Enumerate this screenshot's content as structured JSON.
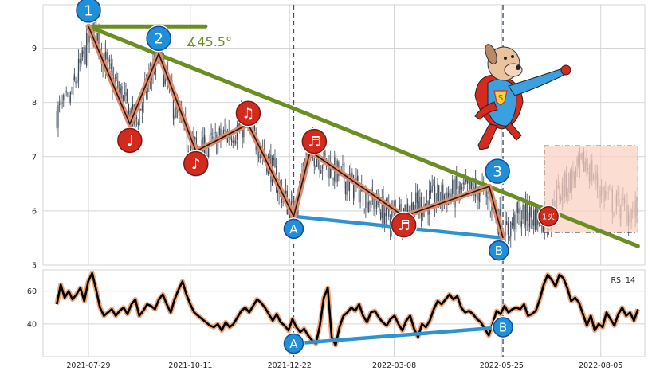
{
  "colors": {
    "candle": "#3a4657",
    "grid": "#d4d4d4",
    "trendline": "#6b8e23",
    "wave": "#e08a6c",
    "support": "#2f92d1",
    "badge_blue": "#1f8fd8",
    "badge_red": "#d42a1d",
    "dashed": "#3f5266",
    "box_fill": "#fbd2c2",
    "box_border": "#4b4b4b",
    "rsi_line": "#000000",
    "rsi_glow": "#f0a97d"
  },
  "icons": {
    "music_notes": [
      "music-note-icon",
      "eighth-note-icon",
      "beamed-notes-icon"
    ],
    "hero": "superhero-dog-icon"
  },
  "chart_data": [
    {
      "type": "candlestick",
      "title": "",
      "xlabel": "",
      "ylabel": "",
      "ylim": [
        5.0,
        9.8
      ],
      "yticks": [
        5,
        6,
        7,
        8,
        9
      ],
      "xlim": [
        "2021-06-26",
        "2022-09-06"
      ],
      "xtick_labels": [
        "2021-07-29",
        "2021-10-11",
        "2021-12-22",
        "2022-03-08",
        "2022-05-25",
        "2022-08-05"
      ],
      "grid": true,
      "price_path": [
        {
          "x": "2021-07-06",
          "y": 7.8
        },
        {
          "x": "2021-07-15",
          "y": 8.0
        },
        {
          "x": "2021-07-22",
          "y": 8.6
        },
        {
          "x": "2021-08-02",
          "y": 9.4
        },
        {
          "x": "2021-08-12",
          "y": 8.6
        },
        {
          "x": "2021-08-24",
          "y": 8.0
        },
        {
          "x": "2021-09-01",
          "y": 7.6
        },
        {
          "x": "2021-09-12",
          "y": 8.5
        },
        {
          "x": "2021-09-18",
          "y": 8.9
        },
        {
          "x": "2021-09-28",
          "y": 8.0
        },
        {
          "x": "2021-10-08",
          "y": 7.3
        },
        {
          "x": "2021-10-20",
          "y": 7.1
        },
        {
          "x": "2021-11-05",
          "y": 7.4
        },
        {
          "x": "2021-11-20",
          "y": 7.6
        },
        {
          "x": "2021-12-05",
          "y": 7.0
        },
        {
          "x": "2021-12-15",
          "y": 6.4
        },
        {
          "x": "2021-12-25",
          "y": 5.9
        },
        {
          "x": "2022-01-02",
          "y": 6.9
        },
        {
          "x": "2022-01-08",
          "y": 7.1
        },
        {
          "x": "2022-01-25",
          "y": 6.7
        },
        {
          "x": "2022-02-15",
          "y": 6.3
        },
        {
          "x": "2022-03-05",
          "y": 5.9
        },
        {
          "x": "2022-03-25",
          "y": 6.1
        },
        {
          "x": "2022-04-15",
          "y": 6.3
        },
        {
          "x": "2022-05-10",
          "y": 6.4
        },
        {
          "x": "2022-05-20",
          "y": 6.0
        },
        {
          "x": "2022-05-26",
          "y": 5.5
        },
        {
          "x": "2022-06-05",
          "y": 5.9
        },
        {
          "x": "2022-06-20",
          "y": 5.9
        },
        {
          "x": "2022-06-28",
          "y": 5.85
        },
        {
          "x": "2022-07-05",
          "y": 6.3
        },
        {
          "x": "2022-07-15",
          "y": 6.6
        },
        {
          "x": "2022-07-25",
          "y": 6.9
        },
        {
          "x": "2022-08-05",
          "y": 6.4
        },
        {
          "x": "2022-08-15",
          "y": 6.1
        },
        {
          "x": "2022-08-25",
          "y": 6.0
        },
        {
          "x": "2022-09-01",
          "y": 6.0
        }
      ],
      "pattern_points": [
        {
          "x": "2021-07-29",
          "y": 9.4
        },
        {
          "x": "2021-08-28",
          "y": 7.6
        },
        {
          "x": "2021-09-18",
          "y": 8.9
        },
        {
          "x": "2021-10-15",
          "y": 7.1
        },
        {
          "x": "2021-11-22",
          "y": 7.6
        },
        {
          "x": "2021-12-25",
          "y": 5.9
        },
        {
          "x": "2022-01-06",
          "y": 7.1
        },
        {
          "x": "2022-03-15",
          "y": 5.9
        },
        {
          "x": "2022-05-16",
          "y": 6.45
        },
        {
          "x": "2022-05-26",
          "y": 5.5
        }
      ],
      "trendline": [
        {
          "x": "2021-07-29",
          "y": 9.4
        },
        {
          "x": "2022-09-01",
          "y": 5.35
        }
      ],
      "horizontal_line": [
        {
          "x": "2021-07-29",
          "y": 9.4
        },
        {
          "x": "2021-10-22",
          "y": 9.4
        }
      ],
      "support_line": [
        {
          "x": "2021-12-25",
          "y": 5.9
        },
        {
          "x": "2022-05-26",
          "y": 5.5
        }
      ],
      "vlines": [
        "2021-12-25",
        "2022-05-26"
      ],
      "box": {
        "x0": "2022-06-25",
        "x1": "2022-09-01",
        "y0": 5.6,
        "y1": 7.2
      },
      "angle_label": "∡45.5°",
      "markers": [
        {
          "label": "1",
          "x": "2021-07-29",
          "y": 9.7,
          "kind": "blue"
        },
        {
          "label": "2",
          "x": "2021-09-18",
          "y": 9.18,
          "kind": "blue"
        },
        {
          "label": "3",
          "x": "2022-05-22",
          "y": 6.73,
          "kind": "blue"
        },
        {
          "label": "A",
          "x": "2021-12-25",
          "y": 5.67,
          "kind": "blue-small"
        },
        {
          "label": "B",
          "x": "2022-05-23",
          "y": 5.27,
          "kind": "blue-small"
        },
        {
          "label": "♩",
          "x": "2021-08-28",
          "y": 7.3,
          "kind": "red"
        },
        {
          "label": "♪",
          "x": "2021-10-15",
          "y": 6.87,
          "kind": "red"
        },
        {
          "label": "♫",
          "x": "2021-11-22",
          "y": 7.8,
          "kind": "red"
        },
        {
          "label": "♬",
          "x": "2022-01-09",
          "y": 7.28,
          "kind": "red"
        },
        {
          "label": "♬",
          "x": "2022-03-15",
          "y": 5.74,
          "kind": "red"
        },
        {
          "label": "1买",
          "x": "2022-06-28",
          "y": 5.9,
          "kind": "red-small"
        }
      ]
    },
    {
      "type": "line",
      "title": "RSI 14",
      "xlabel": "",
      "ylabel": "",
      "ylim": [
        20,
        73
      ],
      "yticks": [
        40,
        60
      ],
      "x_range": [
        "2021-07-06",
        "2022-09-01"
      ],
      "series": [
        {
          "values": [
            52,
            64,
            56,
            60,
            55,
            58,
            62,
            54,
            66,
            71,
            61,
            50,
            45,
            47,
            49,
            45,
            48,
            50,
            46,
            52,
            55,
            45,
            48,
            52,
            51,
            49,
            55,
            58,
            52,
            47,
            55,
            61,
            66,
            58,
            52,
            47,
            45,
            43,
            41,
            39,
            38,
            40,
            36,
            41,
            38,
            40,
            44,
            48,
            50,
            47,
            51,
            55,
            53,
            50,
            46,
            42,
            46,
            41,
            39,
            36,
            43,
            38,
            35,
            37,
            33,
            30,
            28,
            39,
            56,
            62,
            32,
            27,
            38,
            45,
            47,
            50,
            48,
            52,
            45,
            41,
            47,
            48,
            44,
            41,
            39,
            43,
            45,
            40,
            36,
            42,
            45,
            37,
            32,
            40,
            38,
            42,
            49,
            54,
            52,
            55,
            58,
            55,
            57,
            50,
            47,
            48,
            46,
            43,
            41,
            37,
            33,
            40,
            48,
            46,
            51,
            47,
            49,
            50,
            49,
            52,
            45,
            46,
            48,
            55,
            64,
            70,
            67,
            63,
            70,
            68,
            62,
            54,
            56,
            53,
            46,
            39,
            45,
            36,
            40,
            38,
            47,
            43,
            39,
            46,
            50,
            45,
            47,
            42,
            49
          ]
        }
      ],
      "support_line": [
        {
          "x": "2021-12-25",
          "y": 28
        },
        {
          "x": "2022-05-26",
          "y": 38
        }
      ],
      "markers": [
        {
          "label": "A",
          "x": "2021-12-25",
          "y": 28
        },
        {
          "label": "B",
          "x": "2022-05-26",
          "y": 38
        }
      ]
    }
  ]
}
